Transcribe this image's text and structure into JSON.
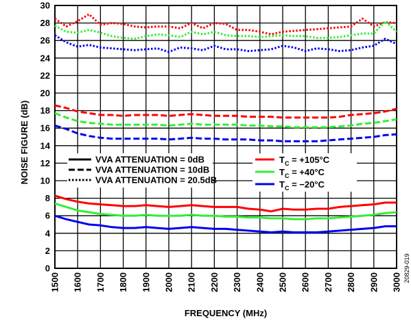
{
  "figure_id": "20829-019",
  "chart_data": {
    "type": "line",
    "xlabel": "FREQUENCY (MHz)",
    "ylabel": "NOISE FIGURE (dB)",
    "xlim": [
      1500,
      3000
    ],
    "ylim": [
      0,
      30
    ],
    "x_ticks": [
      1500,
      1600,
      1700,
      1800,
      1900,
      2000,
      2100,
      2200,
      2300,
      2400,
      2500,
      2600,
      2700,
      2800,
      2900,
      3000
    ],
    "y_ticks": [
      0,
      2,
      4,
      6,
      8,
      10,
      12,
      14,
      16,
      18,
      20,
      22,
      24,
      26,
      28,
      30
    ],
    "grid": true,
    "x": [
      1500,
      1550,
      1600,
      1650,
      1700,
      1750,
      1800,
      1850,
      1900,
      1950,
      2000,
      2050,
      2100,
      2150,
      2200,
      2250,
      2300,
      2350,
      2400,
      2450,
      2500,
      2550,
      2600,
      2650,
      2700,
      2750,
      2800,
      2850,
      2900,
      2950,
      3000
    ],
    "style_legend": [
      {
        "style": "solid",
        "label": "VVA ATTENUATION = 0dB"
      },
      {
        "style": "dashed",
        "label": "VVA ATTENUATION = 10dB"
      },
      {
        "style": "dotted",
        "label": "VVA ATTENUATION = 20.5dB"
      }
    ],
    "temperature_legend": [
      {
        "color": "#ff0000",
        "label_prefix": "T",
        "label_sub": "C",
        "label_suffix": " = +105°C"
      },
      {
        "color": "#33ee33",
        "label_prefix": "T",
        "label_sub": "C",
        "label_suffix": " = +40°C"
      },
      {
        "color": "#0000ee",
        "label_prefix": "T",
        "label_sub": "C",
        "label_suffix": " = −20°C"
      }
    ],
    "series": [
      {
        "attenuation": "0dB",
        "temperature": "+105°C",
        "color": "#ff0000",
        "style": "solid",
        "values": [
          8.3,
          7.9,
          7.6,
          7.4,
          7.3,
          7.2,
          7.1,
          7.1,
          7.2,
          7.1,
          7.0,
          7.1,
          7.2,
          7.1,
          7.0,
          7.0,
          7.0,
          6.8,
          6.7,
          6.5,
          6.8,
          6.7,
          6.7,
          6.8,
          6.8,
          7.0,
          7.1,
          7.2,
          7.3,
          7.5,
          7.5
        ]
      },
      {
        "attenuation": "0dB",
        "temperature": "+40°C",
        "color": "#33ee33",
        "style": "solid",
        "values": [
          7.4,
          7.0,
          6.6,
          6.4,
          6.2,
          6.1,
          6.0,
          6.0,
          6.1,
          6.0,
          6.0,
          6.0,
          6.1,
          6.0,
          6.0,
          5.9,
          5.9,
          5.8,
          5.8,
          5.7,
          5.7,
          5.6,
          5.6,
          5.7,
          5.7,
          5.8,
          5.9,
          6.0,
          6.1,
          6.3,
          6.4
        ]
      },
      {
        "attenuation": "0dB",
        "temperature": "−20°C",
        "color": "#0000ee",
        "style": "solid",
        "values": [
          6.0,
          5.6,
          5.3,
          5.0,
          4.9,
          4.7,
          4.6,
          4.6,
          4.7,
          4.6,
          4.5,
          4.6,
          4.7,
          4.6,
          4.5,
          4.5,
          4.4,
          4.3,
          4.2,
          4.1,
          4.2,
          4.1,
          4.1,
          4.1,
          4.2,
          4.3,
          4.4,
          4.5,
          4.6,
          4.8,
          4.8
        ]
      },
      {
        "attenuation": "10dB",
        "temperature": "+105°C",
        "color": "#ff0000",
        "style": "dashed",
        "values": [
          18.6,
          18.3,
          17.9,
          17.7,
          17.5,
          17.5,
          17.4,
          17.5,
          17.5,
          17.5,
          17.4,
          17.5,
          17.6,
          17.5,
          17.4,
          17.4,
          17.4,
          17.3,
          17.3,
          17.3,
          17.2,
          17.2,
          17.2,
          17.2,
          17.2,
          17.3,
          17.5,
          17.6,
          17.7,
          17.9,
          18.2
        ]
      },
      {
        "attenuation": "10dB",
        "temperature": "+40°C",
        "color": "#33ee33",
        "style": "dashed",
        "values": [
          17.7,
          17.2,
          16.8,
          16.6,
          16.5,
          16.4,
          16.4,
          16.4,
          16.4,
          16.4,
          16.3,
          16.4,
          16.5,
          16.4,
          16.4,
          16.4,
          16.4,
          16.3,
          16.3,
          16.2,
          16.2,
          16.1,
          16.1,
          16.1,
          16.1,
          16.2,
          16.3,
          16.5,
          16.6,
          16.8,
          17.0
        ]
      },
      {
        "attenuation": "10dB",
        "temperature": "−20°C",
        "color": "#0000ee",
        "style": "dashed",
        "values": [
          16.3,
          15.9,
          15.4,
          15.1,
          14.9,
          14.8,
          14.8,
          14.8,
          14.8,
          14.8,
          14.7,
          14.8,
          14.9,
          14.8,
          14.8,
          14.7,
          14.7,
          14.7,
          14.6,
          14.6,
          14.5,
          14.5,
          14.5,
          14.5,
          14.6,
          14.7,
          14.8,
          14.9,
          15.0,
          15.2,
          15.3
        ]
      },
      {
        "attenuation": "20.5dB",
        "temperature": "+105°C",
        "color": "#ff0000",
        "style": "dotted",
        "values": [
          28.5,
          27.6,
          28.2,
          29.0,
          27.8,
          28.0,
          27.9,
          27.6,
          27.5,
          27.6,
          27.6,
          27.4,
          28.0,
          27.4,
          28.0,
          27.9,
          27.2,
          27.2,
          27.0,
          26.7,
          27.0,
          27.1,
          27.2,
          27.3,
          27.4,
          27.5,
          27.6,
          28.5,
          27.6,
          28.1,
          28.0
        ]
      },
      {
        "attenuation": "20.5dB",
        "temperature": "+40°C",
        "color": "#33ee33",
        "style": "dotted",
        "values": [
          27.7,
          27.0,
          26.9,
          27.2,
          26.9,
          26.5,
          26.3,
          26.2,
          26.5,
          26.7,
          26.6,
          26.4,
          27.0,
          26.7,
          27.0,
          26.6,
          26.5,
          26.5,
          26.4,
          26.5,
          26.6,
          26.5,
          26.5,
          26.3,
          26.3,
          26.4,
          26.6,
          26.8,
          26.8,
          28.2,
          27.0
        ]
      },
      {
        "attenuation": "20.5dB",
        "temperature": "−20°C",
        "color": "#0000ee",
        "style": "dotted",
        "values": [
          26.6,
          25.8,
          25.3,
          25.5,
          25.2,
          25.1,
          25.0,
          24.9,
          25.0,
          25.1,
          24.7,
          25.2,
          25.1,
          24.9,
          25.4,
          25.0,
          25.0,
          24.8,
          24.9,
          25.0,
          25.4,
          25.2,
          24.8,
          25.1,
          25.0,
          24.8,
          24.9,
          25.2,
          25.4,
          26.2,
          25.6
        ]
      }
    ]
  }
}
